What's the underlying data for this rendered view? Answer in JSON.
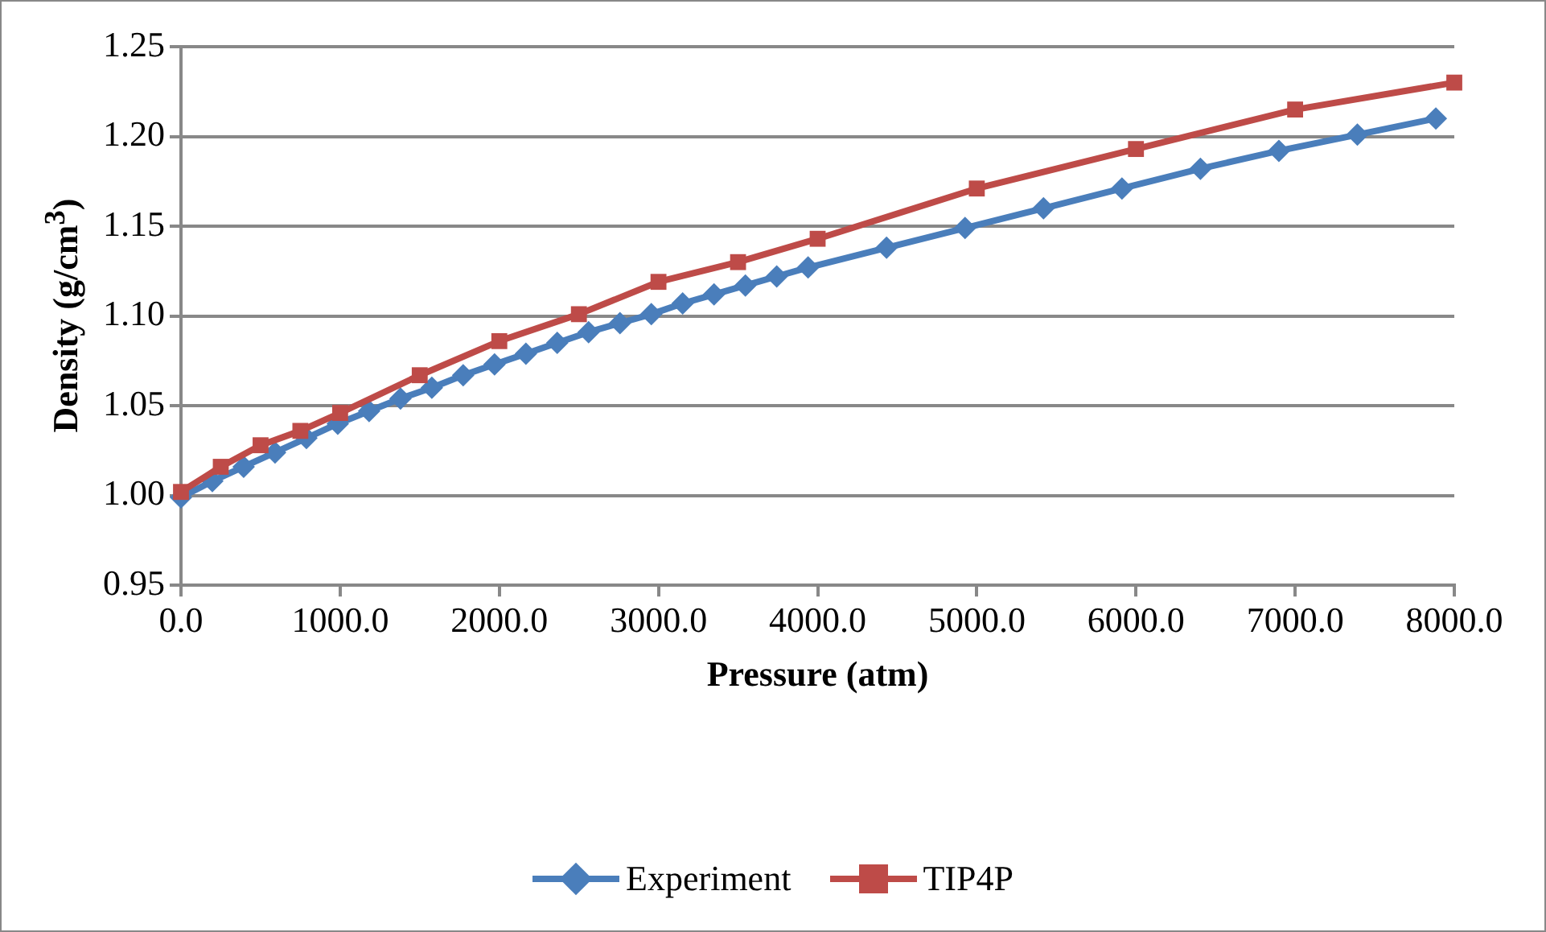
{
  "chart_data": {
    "type": "line",
    "xlabel": "Pressure (atm)",
    "ylabel": "Density (g/cm$^{3}$)",
    "xlim": [
      0,
      8000
    ],
    "xticks": [
      {
        "value": 0,
        "label": "0.0"
      },
      {
        "value": 1000,
        "label": "1000.0"
      },
      {
        "value": 2000,
        "label": "2000.0"
      },
      {
        "value": 3000,
        "label": "3000.0"
      },
      {
        "value": 4000,
        "label": "4000.0"
      },
      {
        "value": 5000,
        "label": "5000.0"
      },
      {
        "value": 6000,
        "label": "6000.0"
      },
      {
        "value": 7000,
        "label": "7000.0"
      },
      {
        "value": 8000,
        "label": "8000.0"
      }
    ],
    "ylim": [
      0.95,
      1.25
    ],
    "yticks": [
      {
        "value": 0.95,
        "label": "0.95"
      },
      {
        "value": 1.0,
        "label": "1.00"
      },
      {
        "value": 1.05,
        "label": "1.05"
      },
      {
        "value": 1.1,
        "label": "1.10"
      },
      {
        "value": 1.15,
        "label": "1.15"
      },
      {
        "value": 1.2,
        "label": "1.20"
      },
      {
        "value": 1.25,
        "label": "1.25"
      }
    ],
    "grid": "y",
    "legend": "bottom",
    "line_style": "solid",
    "series": [
      {
        "name": "Experiment",
        "color": "#4a7ebb",
        "marker": "diamond",
        "x": [
          0,
          197,
          394,
          591,
          788,
          985,
          1182,
          1379,
          1576,
          1773,
          1970,
          2167,
          2364,
          2561,
          2758,
          2955,
          3152,
          3349,
          3546,
          3743,
          3940,
          4433,
          4926,
          5419,
          5912,
          6405,
          6898,
          7391,
          7884
        ],
        "values": [
          0.999,
          1.008,
          1.016,
          1.024,
          1.032,
          1.04,
          1.047,
          1.054,
          1.06,
          1.067,
          1.073,
          1.079,
          1.085,
          1.091,
          1.096,
          1.101,
          1.107,
          1.112,
          1.117,
          1.122,
          1.127,
          1.138,
          1.149,
          1.16,
          1.171,
          1.182,
          1.192,
          1.201,
          1.21
        ]
      },
      {
        "name": "TIP4P",
        "color": "#be4b48",
        "marker": "square",
        "x": [
          0,
          250,
          500,
          750,
          1000,
          1500,
          2000,
          2500,
          3000,
          3500,
          4000,
          5000,
          6000,
          7000,
          8000
        ],
        "values": [
          1.002,
          1.016,
          1.028,
          1.036,
          1.046,
          1.067,
          1.086,
          1.101,
          1.119,
          1.13,
          1.143,
          1.171,
          1.193,
          1.215,
          1.23
        ]
      }
    ]
  }
}
